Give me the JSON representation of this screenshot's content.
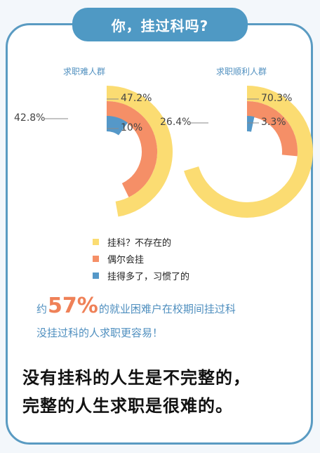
{
  "header": {
    "title": "你，挂过科吗?"
  },
  "chart_data": [
    {
      "type": "donut",
      "title": "求职难人群",
      "series": [
        {
          "name": "挂科？不存在的",
          "value": 47.2,
          "label": "47.2%",
          "color": "#fbdc72"
        },
        {
          "name": "偶尔会挂",
          "value": 42.8,
          "label": "42.8%",
          "color": "#f58f67"
        },
        {
          "name": "挂得多了，习惯了的",
          "value": 10,
          "label": "10%",
          "color": "#5598c8"
        }
      ]
    },
    {
      "type": "donut",
      "title": "求职顺利人群",
      "series": [
        {
          "name": "挂科？不存在的",
          "value": 70.3,
          "label": "70.3%",
          "color": "#fbdc72"
        },
        {
          "name": "偶尔会挂",
          "value": 26.4,
          "label": "26.4%",
          "color": "#f58f67"
        },
        {
          "name": "挂得多了，习惯了的",
          "value": 3.3,
          "label": "3.3%",
          "color": "#5598c8"
        }
      ]
    }
  ],
  "legend": [
    {
      "label": "挂科？不存在的",
      "color": "#fbdc72"
    },
    {
      "label": "偶尔会挂",
      "color": "#f58f67"
    },
    {
      "label": "挂得多了，习惯了的",
      "color": "#5598c8"
    }
  ],
  "stat": {
    "prefix": "约",
    "highlight": "57%",
    "suffix": "的就业困难户在校期间挂过科",
    "line2": "没挂过科的人求职更容易！"
  },
  "slogan": {
    "line1": "没有挂科的人生是不完整的，",
    "line2": "完整的人生求职是很难的。"
  }
}
